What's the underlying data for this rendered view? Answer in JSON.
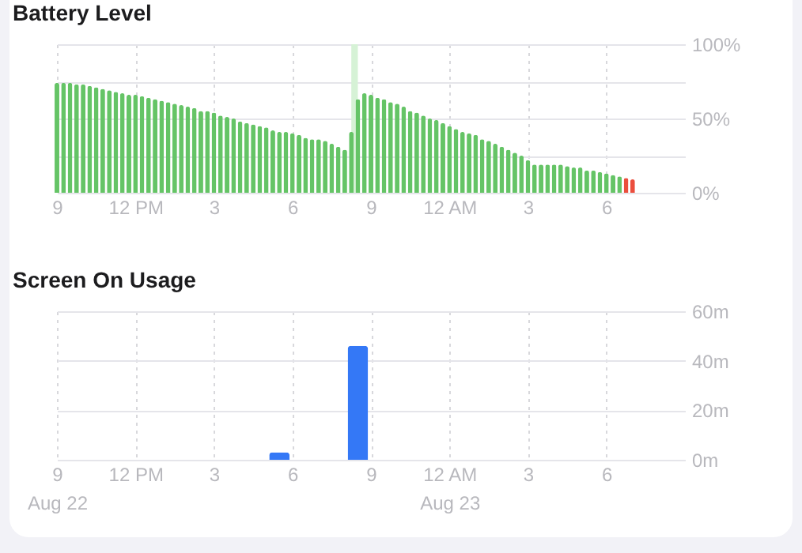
{
  "chart_data": [
    {
      "type": "bar",
      "title": "Battery Level",
      "x": [
        "--08-22T09:00",
        "--08-22T09:15",
        "--08-22T09:30",
        "--08-22T09:45",
        "--08-22T10:00",
        "--08-22T10:15",
        "--08-22T10:30",
        "--08-22T10:45",
        "--08-22T11:00",
        "--08-22T11:15",
        "--08-22T11:30",
        "--08-22T11:45",
        "--08-22T12:00",
        "--08-22T12:15",
        "--08-22T12:30",
        "--08-22T12:45",
        "--08-22T13:00",
        "--08-22T13:15",
        "--08-22T13:30",
        "--08-22T13:45",
        "--08-22T14:00",
        "--08-22T14:15",
        "--08-22T14:30",
        "--08-22T14:45",
        "--08-22T15:00",
        "--08-22T15:15",
        "--08-22T15:30",
        "--08-22T15:45",
        "--08-22T16:00",
        "--08-22T16:15",
        "--08-22T16:30",
        "--08-22T16:45",
        "--08-22T17:00",
        "--08-22T17:15",
        "--08-22T17:30",
        "--08-22T17:45",
        "--08-22T18:00",
        "--08-22T18:15",
        "--08-22T18:30",
        "--08-22T18:45",
        "--08-22T19:00",
        "--08-22T19:15",
        "--08-22T19:30",
        "--08-22T19:45",
        "--08-22T20:00",
        "--08-22T20:15",
        "--08-22T20:30",
        "--08-22T20:45",
        "--08-22T21:00",
        "--08-22T21:15",
        "--08-22T21:30",
        "--08-22T21:45",
        "--08-22T22:00",
        "--08-22T22:15",
        "--08-22T22:30",
        "--08-22T22:45",
        "--08-22T23:00",
        "--08-22T23:15",
        "--08-22T23:30",
        "--08-22T23:45",
        "--08-23T00:00",
        "--08-23T00:15",
        "--08-23T00:30",
        "--08-23T00:45",
        "--08-23T01:00",
        "--08-23T01:15",
        "--08-23T01:30",
        "--08-23T01:45",
        "--08-23T02:00",
        "--08-23T02:15",
        "--08-23T02:30",
        "--08-23T02:45",
        "--08-23T03:00",
        "--08-23T03:15",
        "--08-23T03:30",
        "--08-23T03:45",
        "--08-23T04:00",
        "--08-23T04:15",
        "--08-23T04:30",
        "--08-23T04:45",
        "--08-23T05:00",
        "--08-23T05:15",
        "--08-23T05:30",
        "--08-23T05:45",
        "--08-23T06:00",
        "--08-23T06:15",
        "--08-23T06:30",
        "--08-23T06:45",
        "--08-23T07:00"
      ],
      "values": [
        74,
        74,
        74,
        73,
        73,
        72,
        71,
        70,
        69,
        68,
        67,
        66,
        66,
        65,
        64,
        63,
        62,
        61,
        60,
        59,
        58,
        57,
        55,
        55,
        54,
        52,
        51,
        50,
        48,
        47,
        46,
        45,
        44,
        42,
        41,
        41,
        40,
        39,
        37,
        36,
        36,
        35,
        33,
        31,
        29,
        41,
        63,
        67,
        66,
        64,
        63,
        61,
        60,
        58,
        55,
        54,
        52,
        50,
        49,
        47,
        45,
        43,
        41,
        40,
        39,
        36,
        35,
        33,
        31,
        29,
        27,
        25,
        22,
        19,
        19,
        19,
        19,
        19,
        18,
        17,
        17,
        15,
        15,
        14,
        13,
        12,
        11,
        10,
        9
      ],
      "colors": [
        "#65c466",
        "#65c466",
        "#65c466",
        "#65c466",
        "#65c466",
        "#65c466",
        "#65c466",
        "#65c466",
        "#65c466",
        "#65c466",
        "#65c466",
        "#65c466",
        "#65c466",
        "#65c466",
        "#65c466",
        "#65c466",
        "#65c466",
        "#65c466",
        "#65c466",
        "#65c466",
        "#65c466",
        "#65c466",
        "#65c466",
        "#65c466",
        "#65c466",
        "#65c466",
        "#65c466",
        "#65c466",
        "#65c466",
        "#65c466",
        "#65c466",
        "#65c466",
        "#65c466",
        "#65c466",
        "#65c466",
        "#65c466",
        "#65c466",
        "#65c466",
        "#65c466",
        "#65c466",
        "#65c466",
        "#65c466",
        "#65c466",
        "#65c466",
        "#65c466",
        "#65c466",
        "#65c466",
        "#65c466",
        "#65c466",
        "#65c466",
        "#65c466",
        "#65c466",
        "#65c466",
        "#65c466",
        "#65c466",
        "#65c466",
        "#65c466",
        "#65c466",
        "#65c466",
        "#65c466",
        "#65c466",
        "#65c466",
        "#65c466",
        "#65c466",
        "#65c466",
        "#65c466",
        "#65c466",
        "#65c466",
        "#65c466",
        "#65c466",
        "#65c466",
        "#65c466",
        "#65c466",
        "#65c466",
        "#65c466",
        "#65c466",
        "#65c466",
        "#65c466",
        "#65c466",
        "#65c466",
        "#65c466",
        "#65c466",
        "#65c466",
        "#65c466",
        "#65c466",
        "#65c466",
        "#65c466",
        "#eb4e3d",
        "#eb4e3d"
      ],
      "xlim": [
        "--08-22T09:00",
        "--08-23T09:00"
      ],
      "xticks": [
        {
          "value": "--08-22T09:00",
          "label": "9"
        },
        {
          "value": "--08-22T12:00",
          "label": "12 PM"
        },
        {
          "value": "--08-22T15:00",
          "label": "3"
        },
        {
          "value": "--08-22T18:00",
          "label": "6"
        },
        {
          "value": "--08-22T21:00",
          "label": "9"
        },
        {
          "value": "--08-23T00:00",
          "label": "12 AM"
        },
        {
          "value": "--08-23T03:00",
          "label": "3"
        },
        {
          "value": "--08-23T06:00",
          "label": "6"
        }
      ],
      "ylim": [
        0,
        100
      ],
      "yticks": [
        {
          "value": 0,
          "label": "0%"
        },
        {
          "value": 25,
          "label": null
        },
        {
          "value": 50,
          "label": "50%"
        },
        {
          "value": 75,
          "label": null
        },
        {
          "value": 100,
          "label": "100%"
        }
      ],
      "bands": [
        {
          "axis": "x",
          "from": "--08-22T20:15",
          "to": "--08-22T20:30",
          "label": null,
          "color": "#d6f2d6"
        }
      ],
      "grid": true
    },
    {
      "type": "bar",
      "title": "Screen On Usage",
      "x": [
        "--08-22T17:30",
        "--08-22T20:30"
      ],
      "values": [
        3,
        46
      ],
      "color": "#3478f6",
      "xlim": [
        "--08-22T09:00",
        "--08-23T09:00"
      ],
      "xticks": [
        {
          "value": "--08-22T09:00",
          "label": "9\nAug 22"
        },
        {
          "value": "--08-22T12:00",
          "label": "12 PM"
        },
        {
          "value": "--08-22T15:00",
          "label": "3"
        },
        {
          "value": "--08-22T18:00",
          "label": "6"
        },
        {
          "value": "--08-22T21:00",
          "label": "9"
        },
        {
          "value": "--08-23T00:00",
          "label": "12 AM\nAug 23"
        },
        {
          "value": "--08-23T03:00",
          "label": "3"
        },
        {
          "value": "--08-23T06:00",
          "label": "6"
        }
      ],
      "ylim": [
        0,
        60
      ],
      "yticks": [
        {
          "value": 0,
          "label": "0m"
        },
        {
          "value": 20,
          "label": "20m"
        },
        {
          "value": 40,
          "label": "40m"
        },
        {
          "value": 60,
          "label": "60m"
        }
      ],
      "grid": true
    }
  ]
}
